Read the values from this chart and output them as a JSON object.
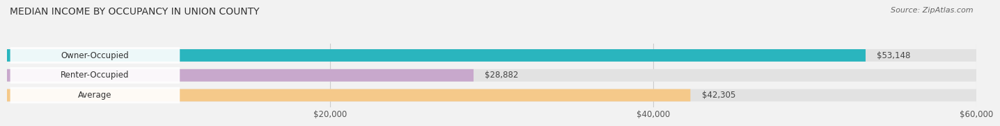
{
  "title": "MEDIAN INCOME BY OCCUPANCY IN UNION COUNTY",
  "source": "Source: ZipAtlas.com",
  "categories": [
    "Owner-Occupied",
    "Renter-Occupied",
    "Average"
  ],
  "values": [
    53148,
    28882,
    42305
  ],
  "bar_colors": [
    "#2ab5be",
    "#c8a8cc",
    "#f5c98a"
  ],
  "bar_labels": [
    "$53,148",
    "$28,882",
    "$42,305"
  ],
  "xlim": [
    0,
    60000
  ],
  "xticks": [
    20000,
    40000,
    60000
  ],
  "xtick_labels": [
    "$20,000",
    "$40,000",
    "$60,000"
  ],
  "background_color": "#f2f2f2",
  "bar_bg_color": "#e2e2e2",
  "label_bg_color": "#ffffff",
  "title_fontsize": 10,
  "label_fontsize": 8.5,
  "source_fontsize": 8
}
